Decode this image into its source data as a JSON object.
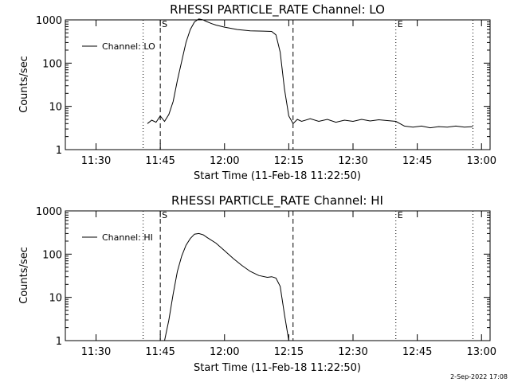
{
  "footer": {
    "timestamp": "2-Sep-2022 17:08"
  },
  "chart_data": [
    {
      "type": "line",
      "title": "RHESSI PARTICLE_RATE Channel: LO",
      "xlabel": "Start Time (11-Feb-18 11:22:50)",
      "ylabel": "Counts/sec",
      "yscale": "log",
      "ylim": [
        1,
        1000
      ],
      "xlim": [
        "11:22:50",
        "13:02:00"
      ],
      "x_ticks": [
        "11:30",
        "11:45",
        "12:00",
        "12:15",
        "12:30",
        "12:45",
        "13:00"
      ],
      "y_ticks": [
        "1",
        "10",
        "100",
        "1000"
      ],
      "legend": {
        "placement": "top-left",
        "entries": [
          "Channel: LO"
        ]
      },
      "markers": [
        {
          "label": "S",
          "time": "11:45:00",
          "style": "dashed"
        },
        {
          "label": "",
          "time": "12:16:00",
          "style": "dashed"
        },
        {
          "label": "",
          "time": "11:41:00",
          "style": "dotted"
        },
        {
          "label": "E",
          "time": "12:40:00",
          "style": "dotted"
        },
        {
          "label": "",
          "time": "12:58:00",
          "style": "dotted"
        }
      ],
      "series": [
        {
          "name": "Channel: LO",
          "points": [
            [
              "11:42:00",
              4
            ],
            [
              "11:43:00",
              4.8
            ],
            [
              "11:44:00",
              4.3
            ],
            [
              "11:45:00",
              6
            ],
            [
              "11:46:00",
              4.5
            ],
            [
              "11:47:00",
              6.5
            ],
            [
              "11:48:00",
              13
            ],
            [
              "11:49:00",
              40
            ],
            [
              "11:50:00",
              110
            ],
            [
              "11:51:00",
              300
            ],
            [
              "11:52:00",
              600
            ],
            [
              "11:53:00",
              900
            ],
            [
              "11:54:00",
              1050
            ],
            [
              "11:55:00",
              1000
            ],
            [
              "11:56:00",
              900
            ],
            [
              "11:57:00",
              820
            ],
            [
              "11:58:00",
              760
            ],
            [
              "12:00:00",
              680
            ],
            [
              "12:03:00",
              600
            ],
            [
              "12:06:00",
              560
            ],
            [
              "12:09:00",
              550
            ],
            [
              "12:11:00",
              540
            ],
            [
              "12:12:00",
              450
            ],
            [
              "12:13:00",
              180
            ],
            [
              "12:14:00",
              25
            ],
            [
              "12:15:00",
              6
            ],
            [
              "12:16:00",
              4
            ],
            [
              "12:17:00",
              5
            ],
            [
              "12:18:00",
              4.5
            ],
            [
              "12:20:00",
              5.2
            ],
            [
              "12:22:00",
              4.5
            ],
            [
              "12:24:00",
              5
            ],
            [
              "12:26:00",
              4.3
            ],
            [
              "12:28:00",
              4.8
            ],
            [
              "12:30:00",
              4.5
            ],
            [
              "12:32:00",
              5
            ],
            [
              "12:34:00",
              4.6
            ],
            [
              "12:36:00",
              4.9
            ],
            [
              "12:38:00",
              4.7
            ],
            [
              "12:40:00",
              4.5
            ],
            [
              "12:42:00",
              3.5
            ],
            [
              "12:44:00",
              3.3
            ],
            [
              "12:46:00",
              3.5
            ],
            [
              "12:48:00",
              3.2
            ],
            [
              "12:50:00",
              3.4
            ],
            [
              "12:52:00",
              3.3
            ],
            [
              "12:54:00",
              3.5
            ],
            [
              "12:56:00",
              3.3
            ],
            [
              "12:58:00",
              3.4
            ]
          ]
        }
      ]
    },
    {
      "type": "line",
      "title": "RHESSI PARTICLE_RATE Channel: HI",
      "xlabel": "Start Time (11-Feb-18 11:22:50)",
      "ylabel": "Counts/sec",
      "yscale": "log",
      "ylim": [
        1,
        1000
      ],
      "xlim": [
        "11:22:50",
        "13:02:00"
      ],
      "x_ticks": [
        "11:30",
        "11:45",
        "12:00",
        "12:15",
        "12:30",
        "12:45",
        "13:00"
      ],
      "y_ticks": [
        "1",
        "10",
        "100",
        "1000"
      ],
      "legend": {
        "placement": "top-left",
        "entries": [
          "Channel: HI"
        ]
      },
      "markers": [
        {
          "label": "S",
          "time": "11:45:00",
          "style": "dashed"
        },
        {
          "label": "",
          "time": "12:16:00",
          "style": "dashed"
        },
        {
          "label": "",
          "time": "11:41:00",
          "style": "dotted"
        },
        {
          "label": "E",
          "time": "12:40:00",
          "style": "dotted"
        },
        {
          "label": "",
          "time": "12:58:00",
          "style": "dotted"
        }
      ],
      "series": [
        {
          "name": "Channel: HI",
          "points": [
            [
              "11:46:00",
              1
            ],
            [
              "11:47:00",
              3
            ],
            [
              "11:48:00",
              12
            ],
            [
              "11:49:00",
              40
            ],
            [
              "11:50:00",
              90
            ],
            [
              "11:51:00",
              160
            ],
            [
              "11:52:00",
              230
            ],
            [
              "11:53:00",
              290
            ],
            [
              "11:54:00",
              300
            ],
            [
              "11:55:00",
              280
            ],
            [
              "11:56:00",
              240
            ],
            [
              "11:58:00",
              180
            ],
            [
              "12:00:00",
              120
            ],
            [
              "12:02:00",
              80
            ],
            [
              "12:04:00",
              55
            ],
            [
              "12:06:00",
              40
            ],
            [
              "12:08:00",
              32
            ],
            [
              "12:10:00",
              29
            ],
            [
              "12:11:00",
              30
            ],
            [
              "12:12:00",
              28
            ],
            [
              "12:13:00",
              18
            ],
            [
              "12:14:00",
              4
            ],
            [
              "12:15:00",
              1
            ]
          ]
        }
      ]
    }
  ]
}
